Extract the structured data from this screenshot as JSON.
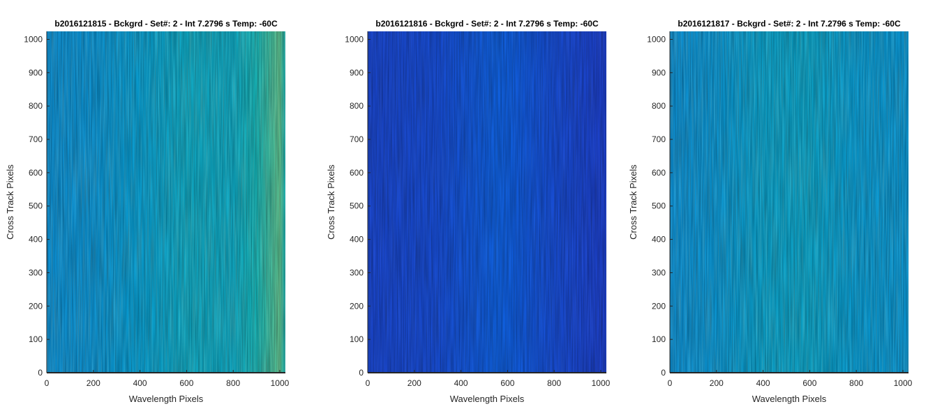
{
  "chart_data": [
    {
      "type": "heatmap",
      "title": "b2016121815 - Bckgrd - Set#: 2 - Int 7.2796 s Temp: -60C",
      "xlabel": "Wavelength Pixels",
      "ylabel": "Cross Track Pixels",
      "xlim": [
        0,
        1024
      ],
      "ylim": [
        0,
        1024
      ],
      "xticks": [
        "0",
        "200",
        "400",
        "600",
        "800",
        "1000"
      ],
      "yticks": [
        "0",
        "100",
        "200",
        "300",
        "400",
        "500",
        "600",
        "700",
        "800",
        "900",
        "1000"
      ],
      "column_profile": {
        "x": [
          0,
          200,
          400,
          600,
          800,
          900,
          1000,
          1024
        ],
        "level": [
          0.45,
          0.46,
          0.5,
          0.55,
          0.55,
          0.6,
          0.7,
          0.6
        ]
      },
      "colormap": "parula"
    },
    {
      "type": "heatmap",
      "title": "b2016121816 - Bckgrd - Set#: 2 - Int 7.2796 s Temp: -60C",
      "xlabel": "Wavelength Pixels",
      "ylabel": "Cross Track Pixels",
      "xlim": [
        0,
        1024
      ],
      "ylim": [
        0,
        1024
      ],
      "xticks": [
        "0",
        "200",
        "400",
        "600",
        "800",
        "1000"
      ],
      "yticks": [
        "0",
        "100",
        "200",
        "300",
        "400",
        "500",
        "600",
        "700",
        "800",
        "900",
        "1000"
      ],
      "column_profile": {
        "x": [
          0,
          300,
          550,
          620,
          800,
          1024
        ],
        "level": [
          0.18,
          0.2,
          0.26,
          0.25,
          0.2,
          0.16
        ]
      },
      "colormap": "parula"
    },
    {
      "type": "heatmap",
      "title": "b2016121817 - Bckgrd - Set#: 2 - Int 7.2796 s Temp: -60C",
      "xlabel": "Wavelength Pixels",
      "ylabel": "Cross Track Pixels",
      "xlim": [
        0,
        1024
      ],
      "ylim": [
        0,
        1024
      ],
      "xticks": [
        "0",
        "200",
        "400",
        "600",
        "800",
        "1000"
      ],
      "yticks": [
        "0",
        "100",
        "200",
        "300",
        "400",
        "500",
        "600",
        "700",
        "800",
        "900",
        "1000"
      ],
      "column_profile": {
        "x": [
          0,
          200,
          400,
          600,
          800,
          1024
        ],
        "level": [
          0.45,
          0.47,
          0.52,
          0.53,
          0.49,
          0.47
        ]
      },
      "colormap": "parula"
    }
  ]
}
